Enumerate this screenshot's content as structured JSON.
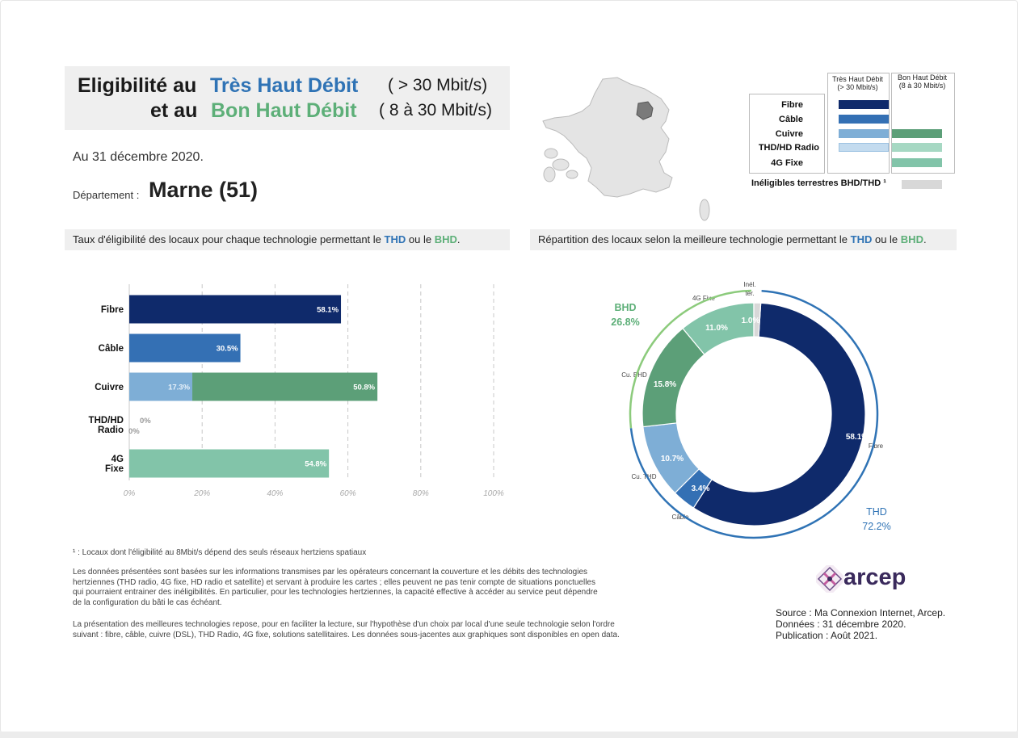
{
  "title": {
    "line1_prefix": "Eligibilité au",
    "line1_highlight": "Très Haut Débit",
    "line1_speed": "( > 30 Mbit/s)",
    "line2_prefix": "et au",
    "line2_highlight": "Bon Haut Débit",
    "line2_speed": "( 8 à 30 Mbit/s)"
  },
  "date_text": "Au 31 décembre 2020.",
  "department": {
    "label": "Département :",
    "name": "Marne (51)"
  },
  "left_section": {
    "prefix": "Taux d'éligibilité des locaux pour chaque technologie permettant le",
    "thd": "THD",
    "middle": "ou le",
    "bhd": "BHD",
    "suffix": "."
  },
  "right_section": {
    "prefix": "Répartition des locaux selon la meilleure technologie permettant le",
    "thd": "THD",
    "middle": "ou le",
    "bhd": "BHD",
    "suffix": "."
  },
  "legend": {
    "col_thd": "Très Haut Débit (> 30 Mbit/s)",
    "col_thd_line1": "Très Haut Débit",
    "col_thd_line2": "(> 30 Mbit/s)",
    "col_bhd_line1": "Bon Haut Débit",
    "col_bhd_line2": "(8 à 30 Mbit/s)",
    "rows": [
      "Fibre",
      "Câble",
      "Cuivre",
      "THD/HD Radio",
      "4G Fixe"
    ],
    "ineligible": "Inéligibles terrestres BHD/THD ¹"
  },
  "colors": {
    "fibre": "#0f2a6b",
    "cable": "#3470b4",
    "cuivre_thd": "#7eaed6",
    "radio_thd": "#c3dbef",
    "cuivre_bhd": "#5c9f78",
    "radio_bhd": "#a6d8c3",
    "fixe4g": "#82c4a9",
    "ineligible": "#d8d8d8",
    "thd_ring": "#2f73b5",
    "bhd_ring": "#8ccb7c"
  },
  "chart_data": [
    {
      "type": "bar",
      "orientation": "horizontal",
      "stacked": true,
      "categories": [
        "Fibre",
        "Câble",
        "Cuivre",
        "THD/HD Radio",
        "4G Fixe"
      ],
      "series": [
        {
          "name": "Très Haut Débit",
          "values": [
            58.1,
            30.5,
            17.3,
            0,
            null
          ]
        },
        {
          "name": "Bon Haut Débit",
          "values": [
            null,
            null,
            50.8,
            0,
            54.8
          ]
        }
      ],
      "data_labels": {
        "Fibre": [
          "58.1%"
        ],
        "Câble": [
          "30.5%"
        ],
        "Cuivre": [
          "17.3%",
          "50.8%"
        ],
        "THD/HD Radio": [
          "0%",
          "0%"
        ],
        "4G Fixe": [
          "54.8%"
        ]
      },
      "x_ticks": [
        "0%",
        "20%",
        "40%",
        "60%",
        "80%",
        "100%"
      ],
      "xlim": [
        0,
        100
      ],
      "grid": true
    },
    {
      "type": "pie",
      "style": "donut",
      "slices": [
        {
          "label": "Fibre",
          "value": 58.1,
          "text": "58.1%",
          "group": "THD"
        },
        {
          "label": "Câble",
          "value": 3.4,
          "text": "3.4%",
          "group": "THD"
        },
        {
          "label": "Cu. THD",
          "value": 10.7,
          "text": "10.7%",
          "group": "THD"
        },
        {
          "label": "Cu. BHD",
          "value": 15.8,
          "text": "15.8%",
          "group": "BHD"
        },
        {
          "label": "4G Fixe",
          "value": 11.0,
          "text": "11.0%",
          "group": "BHD"
        },
        {
          "label": "Inél. ter.",
          "value": 1.0,
          "text": "1.0%",
          "group": "none"
        }
      ],
      "groups": [
        {
          "name": "THD",
          "value_text": "72.2%",
          "value": 72.2
        },
        {
          "name": "BHD",
          "value_text": "26.8%",
          "value": 26.8
        }
      ]
    }
  ],
  "notes": {
    "footnote": "¹ : Locaux dont l'éligibilité au 8Mbit/s dépend des seuls réseaux hertziens spatiaux",
    "para1_lines": [
      "Les données présentées sont basées sur les informations transmises par les opérateurs concernant la couverture et les débits des technologies",
      "hertziennes (THD radio, 4G fixe, HD radio et satellite) et servant à produire les cartes ; elles peuvent ne pas tenir compte de situations ponctuelles",
      "qui pourraient entrainer des inéligibilités. En particulier, pour les technologies hertziennes, la capacité effective à accéder au service peut dépendre",
      "de la configuration du bâti le cas échéant."
    ],
    "para2_lines": [
      "La présentation des meilleures technologies repose, pour en faciliter la lecture, sur l'hypothèse d'un choix par local d'une seule technologie selon l'ordre",
      "suivant : fibre, câble, cuivre (DSL), THD Radio, 4G fixe, solutions satellitaires. Les données sous-jacentes aux graphiques sont disponibles en open data."
    ]
  },
  "source": {
    "line1": "Source : Ma Connexion Internet, Arcep.",
    "line2": "Données : 31 décembre 2020.",
    "line3": "Publication : Août 2021."
  },
  "logo": {
    "text": "arcep",
    "icon": "arcep-logo-icon"
  }
}
